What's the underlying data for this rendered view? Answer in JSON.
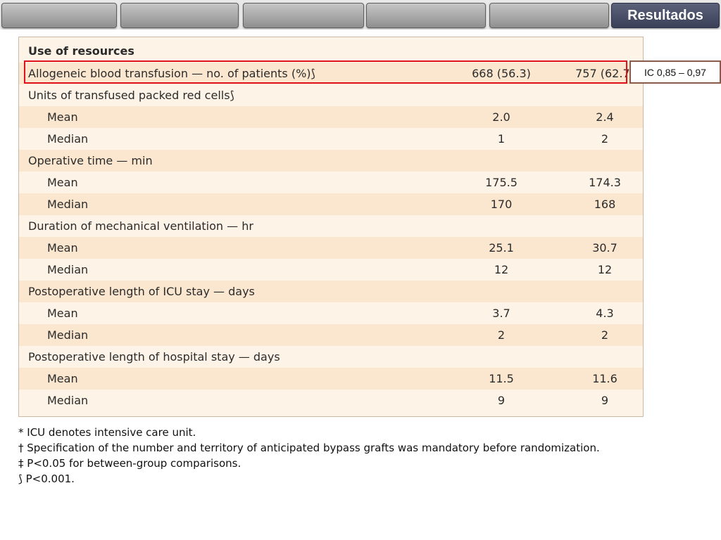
{
  "nav": {
    "tabs": [
      "",
      "",
      "",
      "",
      "",
      "Resultados"
    ],
    "active_tab": "Resultados"
  },
  "ci_note": "IC 0,85 – 0,97",
  "table": {
    "rows": [
      {
        "label": "Use of resources",
        "style": "header",
        "v1": "",
        "v2": ""
      },
      {
        "label": "Allogeneic blood transfusion — no. of patients (%)⟆",
        "style": "top",
        "v1": "668 (56.3)",
        "v2": "757 (62.7)"
      },
      {
        "label": "Units of transfused packed red cells⟆",
        "style": "top",
        "v1": "",
        "v2": ""
      },
      {
        "label": "Mean",
        "style": "sub",
        "v1": "2.0",
        "v2": "2.4"
      },
      {
        "label": "Median",
        "style": "sub",
        "v1": "1",
        "v2": "2"
      },
      {
        "label": "Operative time — min",
        "style": "top",
        "v1": "",
        "v2": ""
      },
      {
        "label": "Mean",
        "style": "sub",
        "v1": "175.5",
        "v2": "174.3"
      },
      {
        "label": "Median",
        "style": "sub",
        "v1": "170",
        "v2": "168"
      },
      {
        "label": "Duration of mechanical ventilation — hr",
        "style": "top",
        "v1": "",
        "v2": ""
      },
      {
        "label": "Mean",
        "style": "sub",
        "v1": "25.1",
        "v2": "30.7"
      },
      {
        "label": "Median",
        "style": "sub",
        "v1": "12",
        "v2": "12"
      },
      {
        "label": "Postoperative length of ICU stay — days",
        "style": "top",
        "v1": "",
        "v2": ""
      },
      {
        "label": "Mean",
        "style": "sub",
        "v1": "3.7",
        "v2": "4.3"
      },
      {
        "label": "Median",
        "style": "sub",
        "v1": "2",
        "v2": "2"
      },
      {
        "label": "Postoperative length of hospital stay — days",
        "style": "top",
        "v1": "",
        "v2": ""
      },
      {
        "label": "Mean",
        "style": "sub",
        "v1": "11.5",
        "v2": "11.6"
      },
      {
        "label": "Median",
        "style": "sub",
        "v1": "9",
        "v2": "9"
      }
    ]
  },
  "footnotes": [
    "* ICU denotes intensive care unit.",
    "† Specification of the number and territory of anticipated bypass grafts was mandatory before randomization.",
    "‡ P<0.05 for between-group comparisons.",
    "⟆ P<0.001."
  ]
}
